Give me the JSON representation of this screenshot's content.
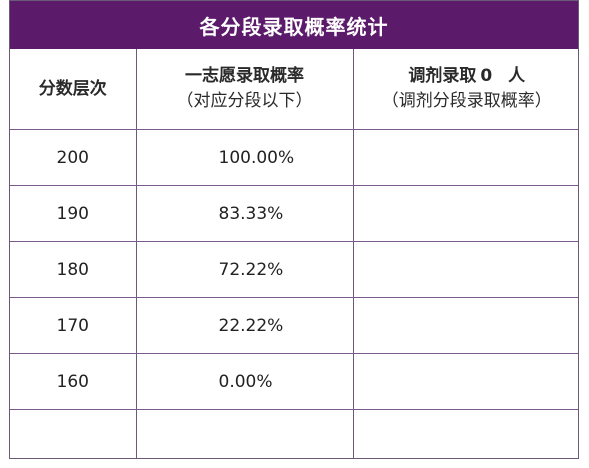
{
  "title": "各分段录取概率统计",
  "headers": {
    "score_level": "分数层次",
    "first_choice_line1": "一志愿录取概率",
    "first_choice_line2": "（对应分段以下）",
    "adjust_prefix": "调剂录取",
    "adjust_count": "0",
    "adjust_suffix": "人",
    "adjust_line2": "（调剂分段录取概率）"
  },
  "rows": [
    {
      "score": "200",
      "rate": "100.00%",
      "adjust": ""
    },
    {
      "score": "190",
      "rate": "83.33%",
      "adjust": ""
    },
    {
      "score": "180",
      "rate": "72.22%",
      "adjust": ""
    },
    {
      "score": "170",
      "rate": "22.22%",
      "adjust": ""
    },
    {
      "score": "160",
      "rate": "0.00%",
      "adjust": ""
    },
    {
      "score": "",
      "rate": "",
      "adjust": ""
    }
  ],
  "colors": {
    "title_bg": "#5b1a6a",
    "border": "#6b5a78"
  }
}
